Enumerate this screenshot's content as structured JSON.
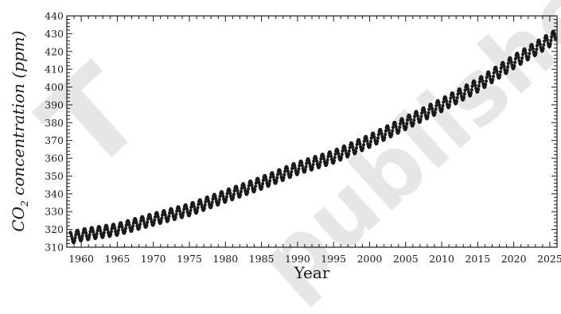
{
  "watermark": {
    "left_text": "T",
    "right_text": "published"
  },
  "chart_data": {
    "type": "scatter",
    "xlabel": "Year",
    "ylabel_main": "CO",
    "ylabel_sub": "2",
    "ylabel_rest": " concentration (ppm)",
    "xlim": [
      1958,
      2026
    ],
    "ylim": [
      310,
      440
    ],
    "x_ticks": [
      1960,
      1965,
      1970,
      1975,
      1980,
      1985,
      1990,
      1995,
      2000,
      2005,
      2010,
      2015,
      2020,
      2025
    ],
    "y_ticks": [
      310,
      320,
      330,
      340,
      350,
      360,
      370,
      380,
      390,
      400,
      410,
      420,
      430,
      440
    ],
    "grid": false,
    "series": [
      {
        "marker_color": "#1a1a1a",
        "annual_mean": {
          "x": [
            1958.5,
            1960,
            1965,
            1970,
            1975,
            1980,
            1985,
            1990,
            1995,
            2000,
            2005,
            2010,
            2015,
            2020,
            2025,
            2025.8
          ],
          "y": [
            315.3,
            316.9,
            320.0,
            325.7,
            331.1,
            338.7,
            346.1,
            354.4,
            360.8,
            369.7,
            379.8,
            389.9,
            401.0,
            414.2,
            426.5,
            428.5
          ]
        },
        "seasonal_amplitude_ppm": 3.2,
        "samples_per_year": 12
      }
    ]
  }
}
